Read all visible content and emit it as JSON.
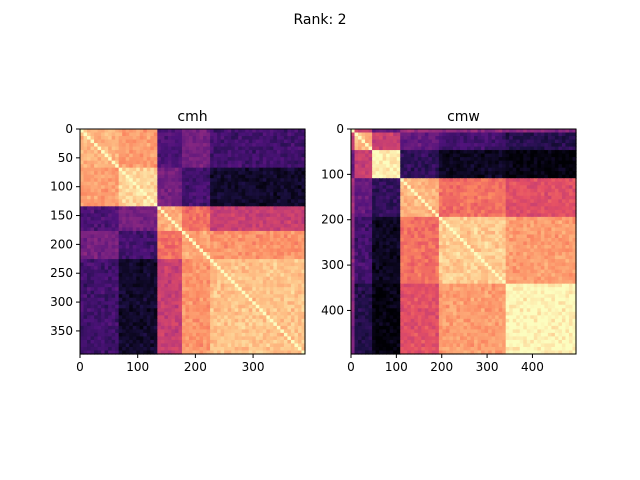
{
  "figure": {
    "suptitle": "Rank: 2"
  },
  "chart_data": [
    {
      "type": "heatmap",
      "title": "cmh",
      "size": 390,
      "colormap": "magma",
      "xticks": [
        0,
        100,
        200,
        300
      ],
      "yticks": [
        0,
        50,
        100,
        150,
        200,
        250,
        300,
        350
      ],
      "xlim": [
        0,
        390
      ],
      "ylim": [
        390,
        0
      ],
      "grid": false,
      "clusters": [
        {
          "start": 0,
          "end": 65
        },
        {
          "start": 65,
          "end": 135
        },
        {
          "start": 135,
          "end": 175
        },
        {
          "start": 175,
          "end": 225
        },
        {
          "start": 225,
          "end": 390
        }
      ],
      "similarity": [
        [
          0.85,
          0.8,
          0.25,
          0.35,
          0.22
        ],
        [
          0.8,
          0.92,
          0.35,
          0.22,
          0.08
        ],
        [
          0.25,
          0.35,
          0.85,
          0.7,
          0.55
        ],
        [
          0.35,
          0.22,
          0.7,
          0.82,
          0.78
        ],
        [
          0.22,
          0.08,
          0.55,
          0.78,
          0.88
        ]
      ]
    },
    {
      "type": "heatmap",
      "title": "cmw",
      "size": 496,
      "colormap": "magma",
      "xticks": [
        0,
        100,
        200,
        300,
        400
      ],
      "yticks": [
        0,
        100,
        200,
        300,
        400
      ],
      "xlim": [
        0,
        496
      ],
      "ylim": [
        496,
        0
      ],
      "grid": false,
      "clusters": [
        {
          "start": 0,
          "end": 10
        },
        {
          "start": 10,
          "end": 45
        },
        {
          "start": 45,
          "end": 110
        },
        {
          "start": 110,
          "end": 195
        },
        {
          "start": 195,
          "end": 340
        },
        {
          "start": 340,
          "end": 496
        }
      ],
      "similarity": [
        [
          0.85,
          0.55,
          0.3,
          0.45,
          0.4,
          0.38
        ],
        [
          0.55,
          0.85,
          0.55,
          0.3,
          0.22,
          0.15
        ],
        [
          0.3,
          0.55,
          0.97,
          0.18,
          0.06,
          0.02
        ],
        [
          0.45,
          0.3,
          0.18,
          0.85,
          0.7,
          0.62
        ],
        [
          0.4,
          0.22,
          0.06,
          0.7,
          0.9,
          0.8
        ],
        [
          0.38,
          0.15,
          0.02,
          0.62,
          0.8,
          0.98
        ]
      ]
    }
  ]
}
